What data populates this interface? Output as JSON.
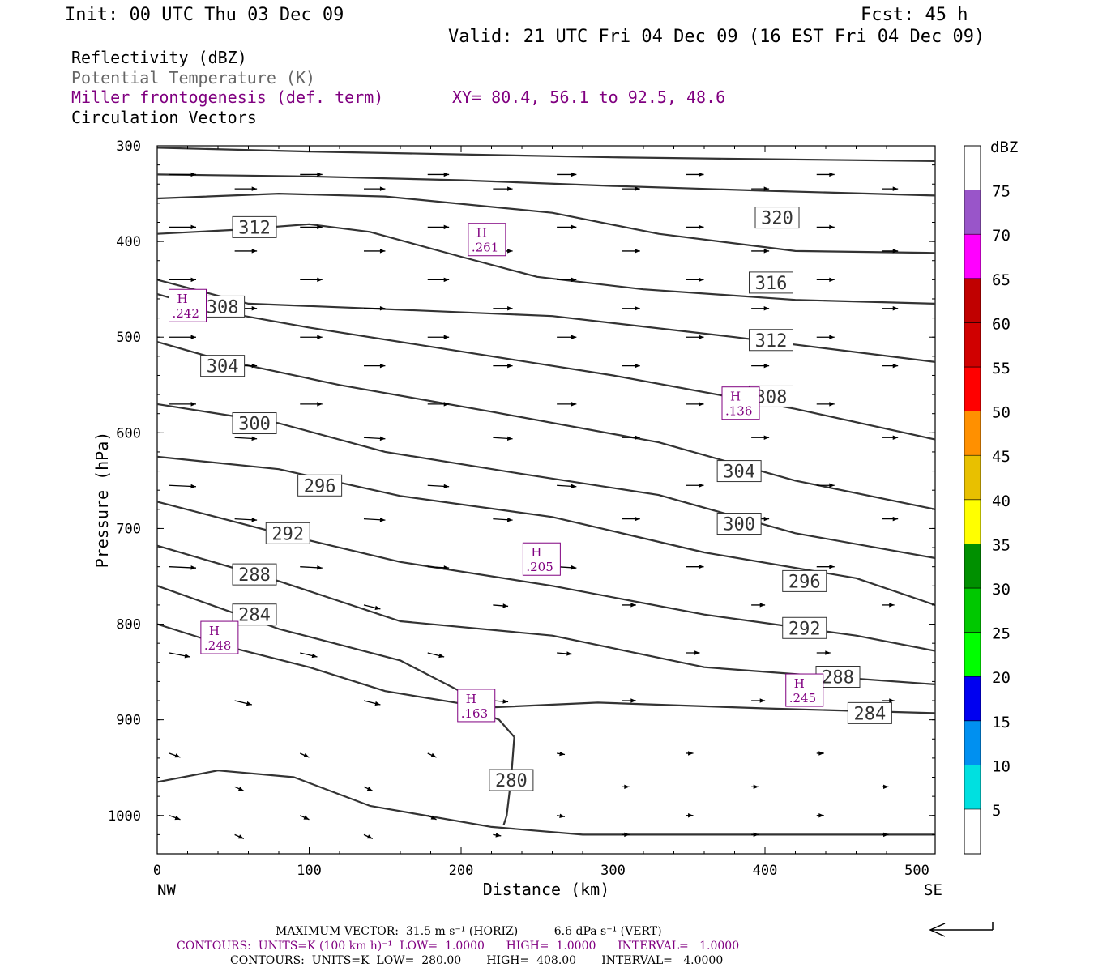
{
  "header": {
    "init": "Init: 00 UTC Thu 03 Dec 09",
    "fcst": "Fcst:   45 h",
    "valid": "Valid: 21 UTC Fri 04 Dec 09 (16 EST Fri 04 Dec 09)",
    "fields": [
      {
        "text": "Reflectivity (dBZ)",
        "color": "#000000"
      },
      {
        "text": "Potential Temperature (K)",
        "color": "#666666"
      },
      {
        "text": "Miller frontogenesis (def. term)",
        "color": "#800080"
      },
      {
        "text": "Circulation Vectors",
        "color": "#000000"
      }
    ],
    "xy": "XY=  80.4, 56.1 to  92.5, 48.6"
  },
  "footer": {
    "max_vector": "MAXIMUM VECTOR:  31.5 m s⁻¹ (HORIZ)          6.6 dPa s⁻¹ (VERT)",
    "contours1": "CONTOURS:  UNITS=K (100 km h)⁻¹  LOW=  1.0000      HIGH=  1.0000      INTERVAL=   1.0000",
    "contours2": "CONTOURS:  UNITS=K  LOW=  280.00       HIGH=  408.00       INTERVAL=   4.0000"
  },
  "chart_data": {
    "type": "line",
    "xlabel": "Distance (km)",
    "ylabel": "Pressure (hPa)",
    "xlim": [
      0,
      512
    ],
    "ylim": [
      1040,
      300
    ],
    "x_ticks": [
      0,
      100,
      200,
      300,
      400,
      500
    ],
    "y_ticks": [
      300,
      400,
      500,
      600,
      700,
      800,
      900,
      1000
    ],
    "x_endpoints": {
      "left": "NW",
      "right": "SE"
    },
    "colorbar": {
      "label": "dBZ",
      "ticks": [
        "5",
        "10",
        "15",
        "20",
        "25",
        "30",
        "35",
        "40",
        "45",
        "50",
        "55",
        "60",
        "65",
        "70",
        "75"
      ],
      "colors": [
        "#00e0e0",
        "#0090f0",
        "#0000f0",
        "#00ff00",
        "#00c800",
        "#009000",
        "#ffff00",
        "#e8c000",
        "#ff9000",
        "#ff0000",
        "#d00000",
        "#c00000",
        "#ff00ff",
        "#9955c9"
      ]
    },
    "theta_labels": [
      {
        "text": "320",
        "x": 408,
        "p": 375
      },
      {
        "text": "316",
        "x": 404,
        "p": 443
      },
      {
        "text": "312",
        "x": 404,
        "p": 503
      },
      {
        "text": "312",
        "x": 64,
        "p": 385
      },
      {
        "text": "308",
        "x": 43,
        "p": 468
      },
      {
        "text": "308",
        "x": 404,
        "p": 562
      },
      {
        "text": "304",
        "x": 43,
        "p": 530
      },
      {
        "text": "304",
        "x": 383,
        "p": 640
      },
      {
        "text": "300",
        "x": 64,
        "p": 590
      },
      {
        "text": "300",
        "x": 383,
        "p": 695
      },
      {
        "text": "296",
        "x": 107,
        "p": 655
      },
      {
        "text": "296",
        "x": 426,
        "p": 755
      },
      {
        "text": "292",
        "x": 86,
        "p": 705
      },
      {
        "text": "292",
        "x": 426,
        "p": 804
      },
      {
        "text": "288",
        "x": 64,
        "p": 748
      },
      {
        "text": "288",
        "x": 448,
        "p": 855
      },
      {
        "text": "284",
        "x": 64,
        "p": 790
      },
      {
        "text": "284",
        "x": 469,
        "p": 893
      },
      {
        "text": "280",
        "x": 233,
        "p": 963
      }
    ],
    "front_maxima": [
      {
        "letter": "H",
        "value": ".261",
        "x": 217,
        "p": 398
      },
      {
        "letter": "H",
        "value": ".242",
        "x": 20,
        "p": 467
      },
      {
        "letter": "H",
        "value": ".136",
        "x": 384,
        "p": 569
      },
      {
        "text": "",
        "letter": "H",
        "value": ".205",
        "x": 253,
        "p": 732
      },
      {
        "letter": "H",
        "value": ".248",
        "x": 41,
        "p": 814
      },
      {
        "letter": "H",
        "value": ".163",
        "x": 210,
        "p": 885
      },
      {
        "letter": "H",
        "value": ".245",
        "x": 426,
        "p": 869
      }
    ],
    "theta_contours": [
      {
        "level": "top",
        "points": [
          [
            0,
            302
          ],
          [
            100,
            306
          ],
          [
            200,
            309
          ],
          [
            300,
            312
          ],
          [
            400,
            314
          ],
          [
            512,
            316
          ]
        ]
      },
      {
        "level": "upper",
        "points": [
          [
            0,
            330
          ],
          [
            100,
            332
          ],
          [
            200,
            336
          ],
          [
            300,
            342
          ],
          [
            400,
            347
          ],
          [
            512,
            352
          ]
        ]
      },
      {
        "level": "320",
        "points": [
          [
            0,
            355
          ],
          [
            80,
            350
          ],
          [
            150,
            353
          ],
          [
            260,
            370
          ],
          [
            330,
            392
          ],
          [
            420,
            410
          ],
          [
            512,
            412
          ]
        ]
      },
      {
        "level": "316",
        "points": [
          [
            0,
            392
          ],
          [
            50,
            388
          ],
          [
            100,
            382
          ],
          [
            140,
            390
          ],
          [
            200,
            416
          ],
          [
            250,
            437
          ],
          [
            320,
            450
          ],
          [
            420,
            461
          ],
          [
            512,
            465
          ]
        ]
      },
      {
        "level": "312",
        "points": [
          [
            0,
            440
          ],
          [
            60,
            465
          ],
          [
            140,
            470
          ],
          [
            260,
            478
          ],
          [
            380,
            500
          ],
          [
            512,
            526
          ]
        ]
      },
      {
        "level": "308",
        "points": [
          [
            0,
            455
          ],
          [
            40,
            473
          ],
          [
            100,
            490
          ],
          [
            200,
            515
          ],
          [
            300,
            540
          ],
          [
            420,
            575
          ],
          [
            512,
            607
          ]
        ]
      },
      {
        "level": "304",
        "points": [
          [
            0,
            505
          ],
          [
            40,
            523
          ],
          [
            120,
            550
          ],
          [
            220,
            578
          ],
          [
            330,
            610
          ],
          [
            420,
            650
          ],
          [
            512,
            680
          ]
        ]
      },
      {
        "level": "300",
        "points": [
          [
            0,
            570
          ],
          [
            80,
            590
          ],
          [
            150,
            620
          ],
          [
            240,
            643
          ],
          [
            330,
            665
          ],
          [
            420,
            705
          ],
          [
            512,
            731
          ]
        ]
      },
      {
        "level": "296",
        "points": [
          [
            0,
            625
          ],
          [
            80,
            638
          ],
          [
            160,
            666
          ],
          [
            260,
            688
          ],
          [
            360,
            725
          ],
          [
            460,
            752
          ],
          [
            512,
            780
          ]
        ]
      },
      {
        "level": "292",
        "points": [
          [
            0,
            672
          ],
          [
            80,
            705
          ],
          [
            160,
            735
          ],
          [
            260,
            760
          ],
          [
            360,
            790
          ],
          [
            460,
            812
          ],
          [
            512,
            828
          ]
        ]
      },
      {
        "level": "288",
        "points": [
          [
            0,
            718
          ],
          [
            80,
            755
          ],
          [
            160,
            797
          ],
          [
            260,
            812
          ],
          [
            360,
            845
          ],
          [
            460,
            857
          ],
          [
            512,
            863
          ]
        ]
      },
      {
        "level": "284",
        "points": [
          [
            0,
            760
          ],
          [
            80,
            805
          ],
          [
            160,
            838
          ],
          [
            220,
            887
          ],
          [
            290,
            882
          ],
          [
            400,
            888
          ],
          [
            512,
            893
          ]
        ]
      },
      {
        "level": "282",
        "points": [
          [
            0,
            800
          ],
          [
            50,
            825
          ],
          [
            100,
            845
          ],
          [
            150,
            870
          ],
          [
            200,
            883
          ],
          [
            225,
            900
          ],
          [
            235,
            918
          ]
        ]
      },
      {
        "level": "280",
        "points": [
          [
            235,
            918
          ],
          [
            233,
            960
          ],
          [
            230,
            1000
          ],
          [
            228,
            1010
          ]
        ]
      },
      {
        "level": "sfc",
        "points": [
          [
            0,
            965
          ],
          [
            40,
            953
          ],
          [
            90,
            960
          ],
          [
            140,
            990
          ],
          [
            220,
            1012
          ],
          [
            280,
            1020
          ],
          [
            512,
            1020
          ]
        ]
      }
    ]
  }
}
